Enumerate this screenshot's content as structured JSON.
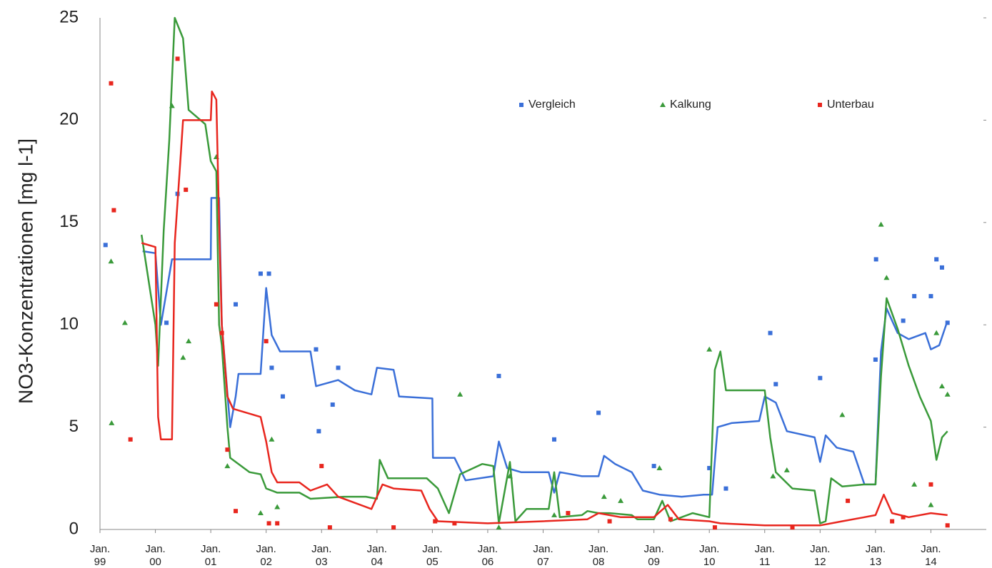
{
  "chart_data": {
    "type": "line",
    "y_label": "NO3-Konzentrationen [mg l-1]",
    "xlim": [
      1999,
      2015
    ],
    "ylim": [
      0,
      25
    ],
    "yticks": [
      0,
      5,
      10,
      15,
      20,
      25
    ],
    "xticks": [
      {
        "value": 1999,
        "label": "Jan. 99"
      },
      {
        "value": 2000,
        "label": "Jan. 00"
      },
      {
        "value": 2001,
        "label": "Jan. 01"
      },
      {
        "value": 2002,
        "label": "Jan. 02"
      },
      {
        "value": 2003,
        "label": "Jan. 03"
      },
      {
        "value": 2004,
        "label": "Jan. 04"
      },
      {
        "value": 2005,
        "label": "Jan. 05"
      },
      {
        "value": 2006,
        "label": "Jan. 06"
      },
      {
        "value": 2007,
        "label": "Jan. 07"
      },
      {
        "value": 2008,
        "label": "Jan. 08"
      },
      {
        "value": 2009,
        "label": "Jan. 09"
      },
      {
        "value": 2010,
        "label": "Jan. 10"
      },
      {
        "value": 2011,
        "label": "Jan. 11"
      },
      {
        "value": 2012,
        "label": "Jan. 12"
      },
      {
        "value": 2013,
        "label": "Jan. 13"
      },
      {
        "value": 2014,
        "label": "Jan. 14"
      }
    ],
    "legend": "top-right",
    "series": [
      {
        "name": "Vergleich",
        "color": "#3a6fd8",
        "marker": "square",
        "x": [
          1999.77,
          2000.0,
          2000.1,
          2000.3,
          2001.0,
          2001.01,
          2001.15,
          2001.2,
          2001.35,
          2001.45,
          2001.5,
          2001.9,
          2002.0,
          2002.1,
          2002.25,
          2002.8,
          2002.9,
          2003.3,
          2003.6,
          2003.9,
          2004.0,
          2004.3,
          2004.4,
          2005.0,
          2005.01,
          2005.4,
          2005.6,
          2006.1,
          2006.2,
          2006.35,
          2006.6,
          2007.1,
          2007.2,
          2007.3,
          2007.7,
          2008.0,
          2008.1,
          2008.3,
          2008.6,
          2008.8,
          2009.1,
          2009.5,
          2009.9,
          2010.05,
          2010.15,
          2010.4,
          2010.9,
          2011.0,
          2011.2,
          2011.4,
          2011.9,
          2012.0,
          2012.1,
          2012.3,
          2012.6,
          2012.8,
          2013.0,
          2013.1,
          2013.2,
          2013.4,
          2013.6,
          2013.9,
          2014.0,
          2014.15,
          2014.3
        ],
        "values": [
          13.6,
          13.5,
          10,
          13.2,
          13.2,
          16.2,
          16.2,
          10,
          5,
          6.5,
          7.6,
          7.6,
          11.8,
          9.5,
          8.7,
          8.7,
          7.0,
          7.3,
          6.8,
          6.6,
          7.9,
          7.8,
          6.5,
          6.4,
          3.5,
          3.5,
          2.4,
          2.6,
          4.3,
          3.0,
          2.8,
          2.8,
          1.8,
          2.8,
          2.6,
          2.6,
          3.6,
          3.2,
          2.8,
          1.9,
          1.7,
          1.6,
          1.7,
          1.7,
          5.0,
          5.2,
          5.3,
          6.5,
          6.2,
          4.8,
          4.5,
          3.3,
          4.6,
          4.0,
          3.8,
          2.2,
          2.2,
          8.7,
          10.8,
          9.6,
          9.3,
          9.6,
          8.8,
          9.0,
          10.2
        ],
        "points": {
          "x": [
            1999.1,
            2000.2,
            2000.4,
            2001.45,
            2001.9,
            2002.05,
            2002.1,
            2002.3,
            2002.9,
            2003.2,
            2003.3,
            2002.95,
            2006.2,
            2007.2,
            2008.0,
            2009.0,
            2010.0,
            2010.3,
            2011.1,
            2011.2,
            2012.0,
            2013.0,
            2013.01,
            2013.5,
            2013.7,
            2014.0,
            2014.1,
            2014.2,
            2014.3
          ],
          "y": [
            13.9,
            10.1,
            16.4,
            11,
            12.5,
            12.5,
            7.9,
            6.5,
            8.8,
            6.1,
            7.9,
            4.8,
            7.5,
            4.4,
            5.7,
            3.1,
            3.0,
            2.0,
            9.6,
            7.1,
            7.4,
            8.3,
            13.2,
            10.2,
            11.4,
            11.4,
            13.2,
            12.8,
            10.1
          ]
        }
      },
      {
        "name": "Kalkung",
        "color": "#3a9a3a",
        "marker": "triangle",
        "x": [
          1999.75,
          2000.0,
          2000.05,
          2000.15,
          2000.25,
          2000.35,
          2000.5,
          2000.6,
          2000.9,
          2001.0,
          2001.1,
          2001.15,
          2001.2,
          2001.3,
          2001.35,
          2001.5,
          2001.7,
          2001.9,
          2002.0,
          2002.2,
          2002.6,
          2002.8,
          2003.4,
          2003.8,
          2004.0,
          2004.05,
          2004.2,
          2004.9,
          2005.1,
          2005.3,
          2005.5,
          2005.9,
          2006.1,
          2006.2,
          2006.4,
          2006.5,
          2006.7,
          2007.1,
          2007.2,
          2007.3,
          2007.7,
          2007.8,
          2008.0,
          2008.2,
          2008.6,
          2008.7,
          2009.0,
          2009.15,
          2009.3,
          2009.7,
          2010.0,
          2010.1,
          2010.2,
          2010.3,
          2011.0,
          2011.1,
          2011.2,
          2011.5,
          2011.9,
          2012.0,
          2012.1,
          2012.2,
          2012.4,
          2012.8,
          2013.0,
          2013.1,
          2013.2,
          2013.4,
          2013.6,
          2013.8,
          2014.0,
          2014.1,
          2014.2,
          2014.3
        ],
        "values": [
          14.4,
          10,
          8,
          14.6,
          19,
          25,
          24,
          20.5,
          19.8,
          18,
          17.5,
          10,
          9,
          5,
          3.5,
          3.2,
          2.8,
          2.7,
          2.0,
          1.8,
          1.8,
          1.5,
          1.6,
          1.6,
          1.5,
          3.4,
          2.5,
          2.5,
          2.0,
          0.8,
          2.7,
          3.2,
          3.1,
          0.3,
          3.3,
          0.4,
          1.0,
          1.0,
          2.8,
          0.6,
          0.7,
          0.9,
          0.8,
          0.8,
          0.7,
          0.5,
          0.5,
          1.4,
          0.4,
          0.8,
          0.6,
          7.8,
          8.7,
          6.8,
          6.8,
          4.5,
          2.8,
          2.0,
          1.9,
          0.3,
          0.4,
          2.5,
          2.1,
          2.2,
          2.2,
          7.5,
          11.3,
          9.8,
          8.0,
          6.5,
          5.3,
          3.4,
          4.5,
          4.8
        ],
        "points": {
          "x": [
            1999.2,
            1999.21,
            1999.45,
            2000.3,
            2000.5,
            2000.6,
            2001.1,
            2001.3,
            2001.9,
            2002.1,
            2002.2,
            2005.5,
            2006.2,
            2006.4,
            2007.2,
            2008.1,
            2008.4,
            2009.1,
            2010.0,
            2011.15,
            2011.4,
            2012.4,
            2013.1,
            2013.2,
            2013.7,
            2014.0,
            2014.1,
            2014.2,
            2014.3
          ],
          "y": [
            13.1,
            5.2,
            10.1,
            20.7,
            8.4,
            9.2,
            18.2,
            3.1,
            0.8,
            4.4,
            1.1,
            6.6,
            0.1,
            2.6,
            0.7,
            1.6,
            1.4,
            3.0,
            8.8,
            2.6,
            2.9,
            5.6,
            14.9,
            12.3,
            2.2,
            1.2,
            9.6,
            7.0,
            6.6
          ]
        }
      },
      {
        "name": "Unterbau",
        "color": "#e8261e",
        "marker": "square",
        "x": [
          1999.75,
          2000.0,
          2000.05,
          2000.1,
          2000.3,
          2000.35,
          2000.45,
          2000.5,
          2001.0,
          2001.02,
          2001.1,
          2001.15,
          2001.2,
          2001.3,
          2001.4,
          2001.9,
          2002.0,
          2002.1,
          2002.2,
          2002.6,
          2002.8,
          2003.1,
          2003.3,
          2003.6,
          2003.9,
          2004.1,
          2004.3,
          2004.8,
          2004.95,
          2005.1,
          2006.0,
          2007.0,
          2007.8,
          2008.0,
          2008.4,
          2009.0,
          2009.25,
          2009.45,
          2010.0,
          2010.2,
          2011.0,
          2012.0,
          2012.4,
          2012.8,
          2013.0,
          2013.15,
          2013.3,
          2013.6,
          2014.0,
          2014.3
        ],
        "values": [
          14.0,
          13.8,
          5.5,
          4.4,
          4.4,
          14,
          18,
          20,
          20,
          21.4,
          21,
          15,
          10,
          6.5,
          5.9,
          5.5,
          4.3,
          2.8,
          2.3,
          2.3,
          1.9,
          2.2,
          1.6,
          1.3,
          1.0,
          2.2,
          2.0,
          1.9,
          1.0,
          0.4,
          0.3,
          0.4,
          0.5,
          0.8,
          0.6,
          0.6,
          1.2,
          0.5,
          0.4,
          0.3,
          0.2,
          0.2,
          0.4,
          0.6,
          0.7,
          1.7,
          0.8,
          0.6,
          0.8,
          0.7
        ],
        "points": {
          "x": [
            1999.2,
            1999.25,
            1999.55,
            2000.4,
            2000.55,
            2001.1,
            2001.2,
            2001.3,
            2001.45,
            2002.0,
            2002.05,
            2002.2,
            2003.0,
            2003.15,
            2004.3,
            2005.05,
            2005.4,
            2007.45,
            2008.2,
            2009.3,
            2010.1,
            2011.5,
            2012.5,
            2013.3,
            2013.5,
            2014.0,
            2014.3
          ],
          "y": [
            21.8,
            15.6,
            4.4,
            23.0,
            16.6,
            11,
            9.6,
            3.9,
            0.9,
            9.2,
            0.3,
            0.3,
            3.1,
            0.1,
            0.1,
            0.4,
            0.3,
            0.8,
            0.4,
            0.5,
            0.1,
            0.1,
            1.4,
            0.4,
            0.6,
            2.2,
            0.2
          ]
        }
      }
    ]
  }
}
